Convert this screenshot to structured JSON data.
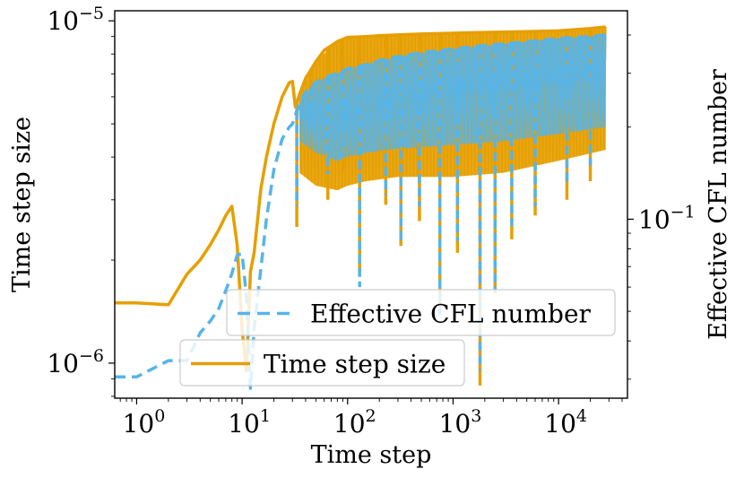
{
  "chart_data": {
    "type": "line",
    "xlabel": "Time step",
    "ylabel_left": "Time step size",
    "ylabel_right": "Effective CFL number",
    "x_scale": "log",
    "y_scale_left": "log",
    "y_scale_right": "log",
    "xlim": [
      0.62,
      45000
    ],
    "ylim_left": [
      7.9e-07,
      1.07e-05
    ],
    "ylim_right": [
      0.026,
      0.48
    ],
    "x_ticks": [
      {
        "value": 1,
        "base": "10",
        "exp": "0"
      },
      {
        "value": 10,
        "base": "10",
        "exp": "1"
      },
      {
        "value": 100,
        "base": "10",
        "exp": "2"
      },
      {
        "value": 1000,
        "base": "10",
        "exp": "3"
      },
      {
        "value": 10000,
        "base": "10",
        "exp": "4"
      }
    ],
    "y_ticks_left": [
      {
        "value": 1e-06,
        "base": "10",
        "exp": "−6"
      },
      {
        "value": 1e-05,
        "base": "10",
        "exp": "−5"
      }
    ],
    "y_ticks_right": [
      {
        "value": 0.1,
        "base": "10",
        "exp": "−1"
      }
    ],
    "grid": false,
    "series": [
      {
        "name": "Time step size",
        "axis": "left",
        "color": "#E69F00",
        "style": "solid",
        "x": [
          0.6,
          1,
          2,
          3,
          4,
          5,
          6,
          7,
          8,
          9,
          10,
          11,
          12,
          13,
          15,
          17,
          20,
          24,
          28,
          30,
          32,
          35,
          40,
          45,
          50,
          60,
          80,
          100,
          150,
          200,
          300,
          500,
          1000,
          2000,
          5000,
          10000,
          20000,
          28000
        ],
        "y": [
          1.5e-06,
          1.5e-06,
          1.48e-06,
          1.82e-06,
          2e-06,
          2.22e-06,
          2.45e-06,
          2.7e-06,
          2.87e-06,
          2.2e-06,
          1.25e-06,
          9.5e-07,
          1.85e-06,
          2.1e-06,
          3.2e-06,
          4e-06,
          5e-06,
          6e-06,
          6.6e-06,
          6.65e-06,
          5.6e-06,
          6.1e-06,
          6.8e-06,
          7.2e-06,
          7.6e-06,
          8.2e-06,
          8.7e-06,
          8.95e-06,
          9e-06,
          9.05e-06,
          9.1e-06,
          9.15e-06,
          9.2e-06,
          9.25e-06,
          9.3e-06,
          9.35e-06,
          9.5e-06,
          9.6e-06
        ],
        "lower_envelope": {
          "x": [
            35,
            50,
            80,
            100,
            150,
            300,
            1000,
            3000,
            10000,
            28000
          ],
          "y": [
            3.6e-06,
            3.3e-06,
            3.2e-06,
            3.3e-06,
            3.4e-06,
            3.5e-06,
            3.5e-06,
            3.6e-06,
            3.9e-06,
            4.2e-06
          ]
        },
        "drops": [
          {
            "x": 33,
            "y": 2.5e-06
          },
          {
            "x": 45,
            "y": 4.6e-06
          },
          {
            "x": 65,
            "y": 3e-06
          },
          {
            "x": 90,
            "y": 3.6e-06
          },
          {
            "x": 130,
            "y": 1.8e-06
          },
          {
            "x": 230,
            "y": 2.9e-06
          },
          {
            "x": 320,
            "y": 2.2e-06
          },
          {
            "x": 480,
            "y": 2.6e-06
          },
          {
            "x": 750,
            "y": 1.4e-06
          },
          {
            "x": 1100,
            "y": 2.1e-06
          },
          {
            "x": 1800,
            "y": 8.6e-07
          },
          {
            "x": 2500,
            "y": 1.6e-06
          },
          {
            "x": 3600,
            "y": 2.3e-06
          },
          {
            "x": 6000,
            "y": 2.7e-06
          },
          {
            "x": 12000,
            "y": 3e-06
          },
          {
            "x": 20000,
            "y": 3.4e-06
          }
        ]
      },
      {
        "name": "Effective CFL number",
        "axis": "right",
        "color": "#56B4E9",
        "style": "dashed",
        "x": [
          0.6,
          1,
          2,
          3,
          4,
          5,
          6,
          7,
          8,
          9,
          10,
          11,
          12,
          13,
          15,
          17,
          20,
          24,
          28,
          30,
          35,
          40,
          45,
          50,
          60,
          80,
          100,
          150,
          200,
          300,
          500,
          1000,
          2000,
          5000,
          10000,
          20000,
          28000
        ],
        "y": [
          0.0305,
          0.0305,
          0.0345,
          0.0345,
          0.0425,
          0.0465,
          0.051,
          0.0585,
          0.0665,
          0.0765,
          0.077,
          0.0555,
          0.028,
          0.044,
          0.068,
          0.1,
          0.145,
          0.183,
          0.2,
          0.205,
          0.24,
          0.26,
          0.27,
          0.28,
          0.29,
          0.3,
          0.31,
          0.32,
          0.33,
          0.34,
          0.35,
          0.36,
          0.37,
          0.38,
          0.39,
          0.395,
          0.4
        ],
        "lower_envelope": {
          "x": [
            35,
            50,
            80,
            100,
            150,
            300,
            1000,
            3000,
            10000,
            28000
          ],
          "y": [
            0.18,
            0.165,
            0.155,
            0.16,
            0.165,
            0.17,
            0.175,
            0.18,
            0.19,
            0.2
          ]
        },
        "drops": [
          {
            "x": 33,
            "y": 0.11
          },
          {
            "x": 45,
            "y": 0.2
          },
          {
            "x": 65,
            "y": 0.14
          },
          {
            "x": 90,
            "y": 0.16
          },
          {
            "x": 130,
            "y": 0.06
          },
          {
            "x": 230,
            "y": 0.12
          },
          {
            "x": 320,
            "y": 0.085
          },
          {
            "x": 480,
            "y": 0.11
          },
          {
            "x": 750,
            "y": 0.048
          },
          {
            "x": 1100,
            "y": 0.085
          },
          {
            "x": 1800,
            "y": 0.032
          },
          {
            "x": 2500,
            "y": 0.058
          },
          {
            "x": 3600,
            "y": 0.095
          },
          {
            "x": 6000,
            "y": 0.11
          },
          {
            "x": 12000,
            "y": 0.13
          },
          {
            "x": 20000,
            "y": 0.15
          }
        ]
      }
    ],
    "legend": [
      {
        "label": "Effective CFL number",
        "series": 1,
        "placement": "center-right"
      },
      {
        "label": "Time step size",
        "series": 0,
        "placement": "lower-center"
      }
    ]
  }
}
